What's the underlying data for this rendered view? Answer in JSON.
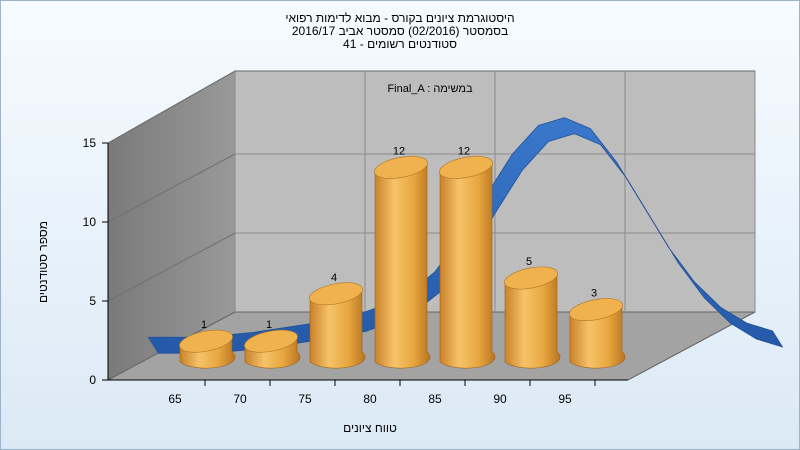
{
  "title_lines": [
    "היסטוגרמת ציונים בקורס - מבוא לדימות רפואי",
    "בסמסטר  (02/2016)  סמסטר אביב 2016/17",
    "סטודנטים רשומים - 41"
  ],
  "task_label": "Final_A : במשימה",
  "colors": {
    "bar": "#e7a63f",
    "bar_top": "#f0b451",
    "curve": "#2f6abc",
    "back_wall": "#b9b9b9",
    "side_wall": "#8c8c8c",
    "floor": "#9c9c9c"
  },
  "chart_data": {
    "type": "bar",
    "title": "היסטוגרמת ציונים בקורס - מבוא לדימות רפואי",
    "xlabel": "טווח ציונים",
    "ylabel": "מספר סטודנטים",
    "x_ticks": [
      "65",
      "70",
      "75",
      "80",
      "85",
      "90",
      "95"
    ],
    "y_ticks": [
      "0",
      "5",
      "10",
      "15"
    ],
    "ylim": [
      0,
      15
    ],
    "categories": [
      "65",
      "70",
      "75",
      "80",
      "85",
      "90",
      "95"
    ],
    "series": [
      {
        "values": [
          1,
          1,
          4,
          12,
          12,
          5,
          3
        ]
      }
    ],
    "curve": {
      "type": "normal-distribution",
      "x": [
        58,
        62,
        66,
        70,
        74,
        76,
        78,
        80,
        82,
        84,
        86,
        88,
        90,
        92,
        94,
        96,
        98,
        100,
        102,
        104,
        106
      ],
      "y": [
        1.2,
        1.2,
        1.5,
        2.0,
        2.6,
        3.2,
        4.0,
        5.3,
        7.5,
        10.2,
        12.8,
        14.6,
        15.1,
        14.4,
        12.3,
        9.6,
        6.9,
        4.7,
        3.1,
        2.1,
        1.6
      ]
    },
    "grid": true,
    "legend": "none"
  }
}
